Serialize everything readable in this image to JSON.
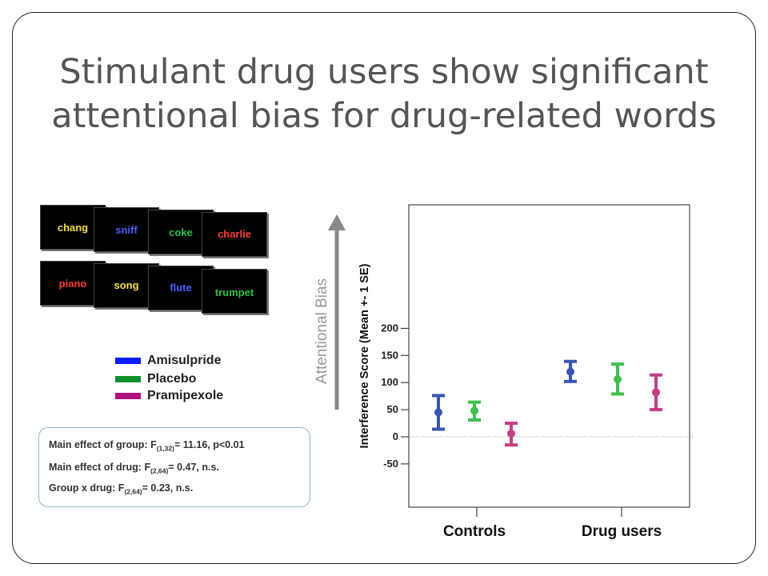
{
  "slide": {
    "title_line1": "Stimulant drug users show significant",
    "title_line2": "attentional bias for drug-related words"
  },
  "word_cards": {
    "drug_words": [
      {
        "word": "chang",
        "color": "#f5e23a"
      },
      {
        "word": "sniff",
        "color": "#4a5cff"
      },
      {
        "word": "coke",
        "color": "#22c44a"
      },
      {
        "word": "charlie",
        "color": "#ff3b2f"
      }
    ],
    "neutral_words": [
      {
        "word": "piano",
        "color": "#ff3b2f"
      },
      {
        "word": "song",
        "color": "#f5e23a"
      },
      {
        "word": "flute",
        "color": "#4a5cff"
      },
      {
        "word": "trumpet",
        "color": "#22c44a"
      }
    ]
  },
  "legend": [
    {
      "label": "Amisulpride",
      "color": "#0b1fff"
    },
    {
      "label": "Placebo",
      "color": "#0f8f2a"
    },
    {
      "label": "Pramipexole",
      "color": "#b01080"
    }
  ],
  "stats": {
    "group": {
      "prefix": "Main effect of group: F",
      "sub": "(1,32)",
      "suffix": "= 11.16, p<0.01"
    },
    "drug": {
      "prefix": "Main effect of drug: F",
      "sub": "(2,64)",
      "suffix": "= 0.47, n.s."
    },
    "interaction": {
      "prefix": "Group x drug: F",
      "sub": "(2,64)",
      "suffix": "= 0.23, n.s."
    }
  },
  "arrow_label": "Attentional Bias",
  "chart_data": {
    "type": "scatter",
    "categories": [
      "Controls",
      "Drug users"
    ],
    "ylabel": "Interference Score (Mean +- 1 SE)",
    "xlabel": "",
    "ylim": [
      -65,
      215
    ],
    "yticks": [
      -50,
      0,
      50,
      100,
      150,
      200
    ],
    "ytick_labels": [
      "-50",
      "0",
      "50",
      "100",
      "150",
      "200"
    ],
    "reference_line": 0,
    "series": [
      {
        "name": "Amisulpride",
        "color": "#3a55b3",
        "points": [
          {
            "group": "Controls",
            "mean": 45,
            "low": 14,
            "high": 76
          },
          {
            "group": "Drug users",
            "mean": 120,
            "low": 102,
            "high": 139
          }
        ]
      },
      {
        "name": "Placebo",
        "color": "#3fc04f",
        "points": [
          {
            "group": "Controls",
            "mean": 48,
            "low": 31,
            "high": 64
          },
          {
            "group": "Drug users",
            "mean": 106,
            "low": 79,
            "high": 134
          }
        ]
      },
      {
        "name": "Pramipexole",
        "color": "#c73d83",
        "points": [
          {
            "group": "Controls",
            "mean": 6,
            "low": -15,
            "high": 25
          },
          {
            "group": "Drug users",
            "mean": 82,
            "low": 50,
            "high": 114
          }
        ]
      }
    ]
  }
}
